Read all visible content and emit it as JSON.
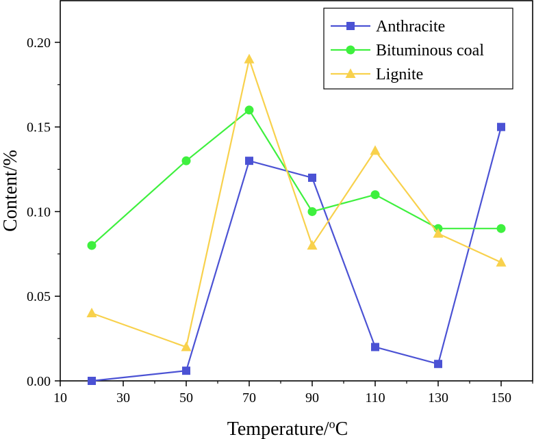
{
  "chart_data": {
    "type": "line",
    "title": "",
    "xlabel": "Temperature/",
    "xlabel_unit_sup": "o",
    "xlabel_unit": "C",
    "ylabel": "Content/%",
    "xlim": [
      10,
      160
    ],
    "ylim": [
      0,
      0.225
    ],
    "x_ticks": [
      10,
      30,
      50,
      70,
      90,
      110,
      130,
      150
    ],
    "y_ticks": [
      0,
      0.05,
      0.1,
      0.15,
      0.2
    ],
    "y_tick_labels": [
      "0.00",
      "0.05",
      "0.10",
      "0.15",
      "0.20"
    ],
    "legend_position": "top-right",
    "grid": false,
    "x": [
      20,
      50,
      70,
      90,
      110,
      130,
      150
    ],
    "series": [
      {
        "name": "Anthracite",
        "color": "#4b52d4",
        "marker": "square",
        "values": [
          0.0,
          0.006,
          0.13,
          0.12,
          0.02,
          0.01,
          0.15
        ]
      },
      {
        "name": "Bituminous coal",
        "color": "#3ef03e",
        "marker": "circle",
        "values": [
          0.08,
          0.13,
          0.16,
          0.1,
          0.11,
          0.09,
          0.09
        ]
      },
      {
        "name": "Lignite",
        "color": "#f8d14c",
        "marker": "triangle",
        "values": [
          0.04,
          0.02,
          0.19,
          0.08,
          0.136,
          0.087,
          0.07
        ]
      }
    ]
  }
}
